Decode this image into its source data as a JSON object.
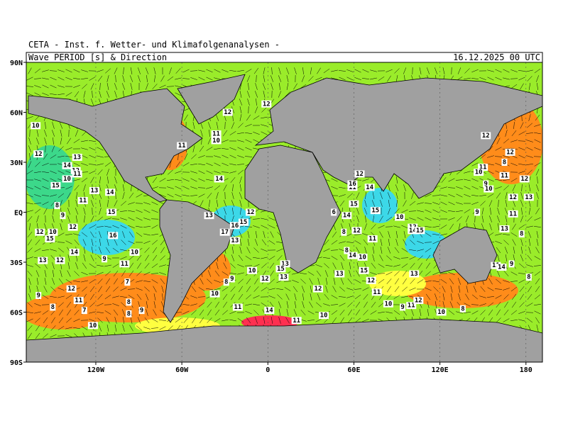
{
  "header": {
    "institute": "CETA - Inst. f. Wetter- und Klimafolgenanalysen -",
    "title": "Wave_PERIOD_[s]_&_Direction",
    "date": "16.12.2025 00 UTC"
  },
  "map": {
    "xlim": [
      -168.5,
      191.5
    ],
    "ylim": [
      -90,
      90
    ],
    "xticks": [
      {
        "value": -120,
        "label": "120W"
      },
      {
        "value": -60,
        "label": "60W"
      },
      {
        "value": 0,
        "label": "0"
      },
      {
        "value": 60,
        "label": "60E"
      },
      {
        "value": 120,
        "label": "120E"
      },
      {
        "value": 180,
        "label": "180"
      }
    ],
    "yticks": [
      {
        "value": 90,
        "label": "90N"
      },
      {
        "value": 60,
        "label": "60N"
      },
      {
        "value": 30,
        "label": "30N"
      },
      {
        "value": 0,
        "label": "EQ"
      },
      {
        "value": -30,
        "label": "30S"
      },
      {
        "value": -60,
        "label": "60S"
      },
      {
        "value": -90,
        "label": "90S"
      }
    ],
    "labels": [
      {
        "lon": -162,
        "lat": 52,
        "value": 10
      },
      {
        "lon": -160,
        "lat": 35,
        "value": 12
      },
      {
        "lon": -28,
        "lat": 60,
        "value": 12
      },
      {
        "lon": -1,
        "lat": 65,
        "value": 12
      },
      {
        "lon": -36,
        "lat": 47,
        "value": 11
      },
      {
        "lon": -36,
        "lat": 43,
        "value": 10
      },
      {
        "lon": -60,
        "lat": 40,
        "value": 11
      },
      {
        "lon": -133,
        "lat": 33,
        "value": 13
      },
      {
        "lon": -140,
        "lat": 28,
        "value": 14
      },
      {
        "lon": -134,
        "lat": 25,
        "value": 12
      },
      {
        "lon": -133,
        "lat": 23,
        "value": 11
      },
      {
        "lon": -140,
        "lat": 20,
        "value": 10
      },
      {
        "lon": -148,
        "lat": 16,
        "value": 15
      },
      {
        "lon": -121,
        "lat": 13,
        "value": 13
      },
      {
        "lon": -110,
        "lat": 12,
        "value": 14
      },
      {
        "lon": -129,
        "lat": 7,
        "value": 11
      },
      {
        "lon": -147,
        "lat": 4,
        "value": 8
      },
      {
        "lon": -143,
        "lat": -2,
        "value": 9
      },
      {
        "lon": -109,
        "lat": 0,
        "value": 15
      },
      {
        "lon": -136,
        "lat": -9,
        "value": 12
      },
      {
        "lon": -159,
        "lat": -12,
        "value": 12
      },
      {
        "lon": -150,
        "lat": -12,
        "value": 10
      },
      {
        "lon": -152,
        "lat": -16,
        "value": 15
      },
      {
        "lon": -108,
        "lat": -14,
        "value": 16
      },
      {
        "lon": -135,
        "lat": -24,
        "value": 14
      },
      {
        "lon": -93,
        "lat": -24,
        "value": 10
      },
      {
        "lon": -157,
        "lat": -29,
        "value": 13
      },
      {
        "lon": -145,
        "lat": -29,
        "value": 12
      },
      {
        "lon": -114,
        "lat": -28,
        "value": 9
      },
      {
        "lon": -100,
        "lat": -31,
        "value": 11
      },
      {
        "lon": -98,
        "lat": -42,
        "value": 7
      },
      {
        "lon": -137,
        "lat": -46,
        "value": 12
      },
      {
        "lon": -160,
        "lat": -50,
        "value": 9
      },
      {
        "lon": -132,
        "lat": -53,
        "value": 11
      },
      {
        "lon": -97,
        "lat": -54,
        "value": 8
      },
      {
        "lon": -150,
        "lat": -57,
        "value": 8
      },
      {
        "lon": -128,
        "lat": -59,
        "value": 7
      },
      {
        "lon": -88,
        "lat": -59,
        "value": 9
      },
      {
        "lon": -97,
        "lat": -61,
        "value": 8
      },
      {
        "lon": -122,
        "lat": -68,
        "value": 10
      },
      {
        "lon": -34,
        "lat": 20,
        "value": 14
      },
      {
        "lon": -41,
        "lat": -2,
        "value": 13
      },
      {
        "lon": -12,
        "lat": 0,
        "value": 12
      },
      {
        "lon": -17,
        "lat": -6,
        "value": 15
      },
      {
        "lon": -23,
        "lat": -8,
        "value": 16
      },
      {
        "lon": -30,
        "lat": -12,
        "value": 17
      },
      {
        "lon": -23,
        "lat": -17,
        "value": 13
      },
      {
        "lon": 12,
        "lat": -31,
        "value": 13
      },
      {
        "lon": 9,
        "lat": -34,
        "value": 15
      },
      {
        "lon": -11,
        "lat": -35,
        "value": 10
      },
      {
        "lon": -25,
        "lat": -40,
        "value": 9
      },
      {
        "lon": -2,
        "lat": -40,
        "value": 12
      },
      {
        "lon": 11,
        "lat": -39,
        "value": 13
      },
      {
        "lon": -29,
        "lat": -42,
        "value": 8
      },
      {
        "lon": -37,
        "lat": -49,
        "value": 10
      },
      {
        "lon": 35,
        "lat": -46,
        "value": 12
      },
      {
        "lon": -21,
        "lat": -57,
        "value": 11
      },
      {
        "lon": 1,
        "lat": -59,
        "value": 14
      },
      {
        "lon": 39,
        "lat": -62,
        "value": 10
      },
      {
        "lon": 20,
        "lat": -65,
        "value": 11
      },
      {
        "lon": 50,
        "lat": -37,
        "value": 13
      },
      {
        "lon": 72,
        "lat": -41,
        "value": 12
      },
      {
        "lon": 76,
        "lat": -48,
        "value": 11
      },
      {
        "lon": 84,
        "lat": -55,
        "value": 10
      },
      {
        "lon": 94,
        "lat": -57,
        "value": 9
      },
      {
        "lon": 100,
        "lat": -56,
        "value": 11
      },
      {
        "lon": 105,
        "lat": -53,
        "value": 12
      },
      {
        "lon": 121,
        "lat": -60,
        "value": 10
      },
      {
        "lon": 136,
        "lat": -58,
        "value": 8
      },
      {
        "lon": 102,
        "lat": -37,
        "value": 13
      },
      {
        "lon": 67,
        "lat": -35,
        "value": 15
      },
      {
        "lon": 66,
        "lat": -27,
        "value": 10
      },
      {
        "lon": 59,
        "lat": -26,
        "value": 14
      },
      {
        "lon": 55,
        "lat": -23,
        "value": 8
      },
      {
        "lon": 73,
        "lat": -16,
        "value": 11
      },
      {
        "lon": 62,
        "lat": -11,
        "value": 12
      },
      {
        "lon": 53,
        "lat": -12,
        "value": 8
      },
      {
        "lon": 46,
        "lat": 0,
        "value": 6
      },
      {
        "lon": 55,
        "lat": -2,
        "value": 14
      },
      {
        "lon": 60,
        "lat": 5,
        "value": 15
      },
      {
        "lon": 59,
        "lat": 15,
        "value": 11
      },
      {
        "lon": 59,
        "lat": 17,
        "value": 16
      },
      {
        "lon": 64,
        "lat": 23,
        "value": 12
      },
      {
        "lon": 71,
        "lat": 15,
        "value": 14
      },
      {
        "lon": 75,
        "lat": 1,
        "value": 15
      },
      {
        "lon": 92,
        "lat": -3,
        "value": 10
      },
      {
        "lon": 101,
        "lat": -9,
        "value": 12
      },
      {
        "lon": 101,
        "lat": -11,
        "value": 14
      },
      {
        "lon": 106,
        "lat": -11,
        "value": 15
      },
      {
        "lon": 152,
        "lat": 46,
        "value": 12
      },
      {
        "lon": 169,
        "lat": 36,
        "value": 12
      },
      {
        "lon": 165,
        "lat": 30,
        "value": 8
      },
      {
        "lon": 150,
        "lat": 27,
        "value": 11
      },
      {
        "lon": 147,
        "lat": 24,
        "value": 10
      },
      {
        "lon": 165,
        "lat": 22,
        "value": 11
      },
      {
        "lon": 179,
        "lat": 20,
        "value": 12
      },
      {
        "lon": 152,
        "lat": 17,
        "value": 9
      },
      {
        "lon": 154,
        "lat": 14,
        "value": 10
      },
      {
        "lon": 182,
        "lat": 9,
        "value": 13
      },
      {
        "lon": 171,
        "lat": 9,
        "value": 12
      },
      {
        "lon": 171,
        "lat": -1,
        "value": 11
      },
      {
        "lon": 146,
        "lat": 0,
        "value": 9
      },
      {
        "lon": 165,
        "lat": -10,
        "value": 13
      },
      {
        "lon": 177,
        "lat": -13,
        "value": 8
      },
      {
        "lon": 159,
        "lat": -32,
        "value": 11
      },
      {
        "lon": 163,
        "lat": -33,
        "value": 14
      },
      {
        "lon": 170,
        "lat": -31,
        "value": 9
      },
      {
        "lon": 182,
        "lat": -39,
        "value": 8
      }
    ]
  }
}
